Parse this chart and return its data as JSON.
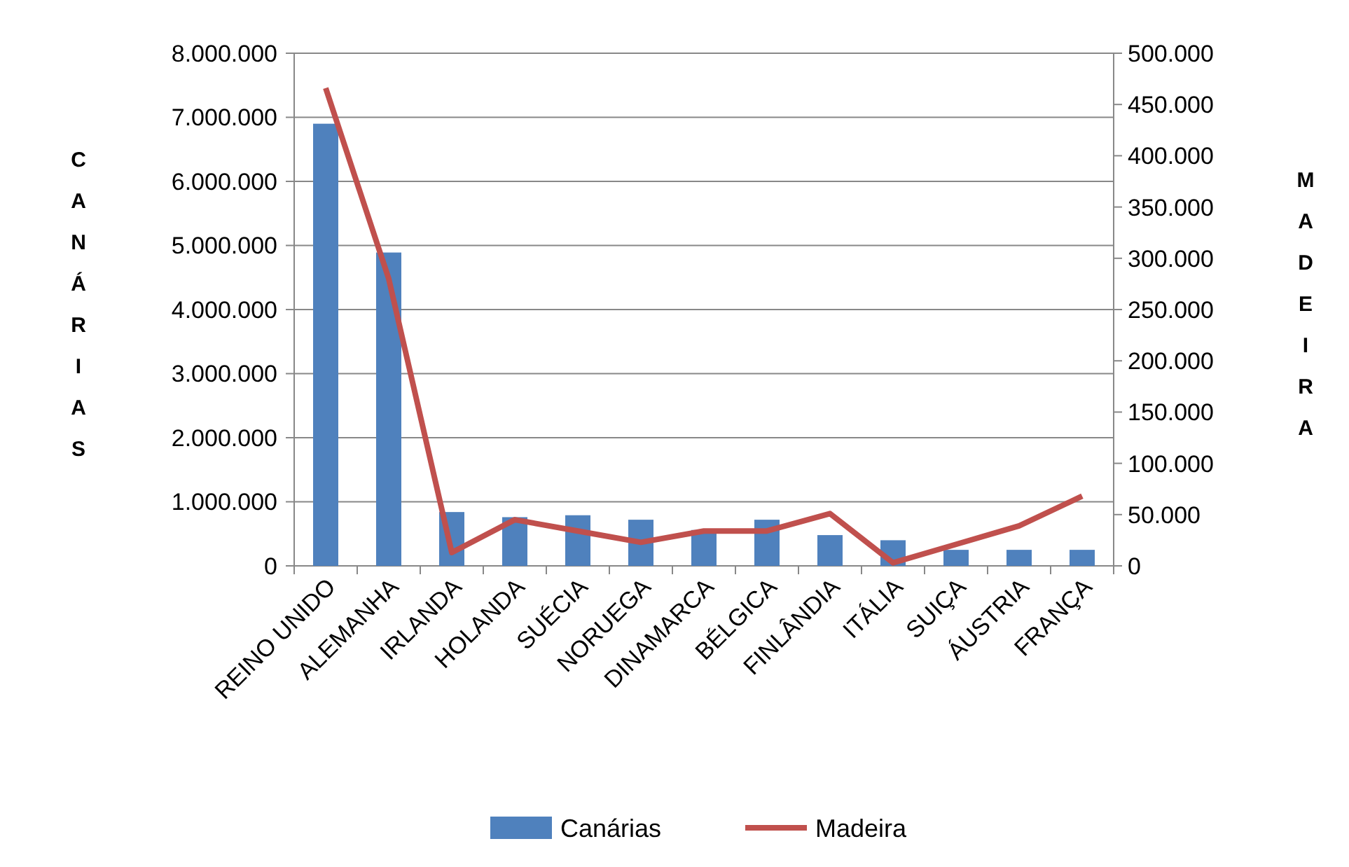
{
  "chart_data": {
    "type": "bar",
    "ylabel": "CANÁRIAS",
    "y2label": "MADEIRA",
    "categories": [
      "REINO UNIDO",
      "ALEMANHA",
      "IRLANDA",
      "HOLANDA",
      "SUÉCIA",
      "NORUEGA",
      "DINAMARCA",
      "BÉLGICA",
      "FINLÂNDIA",
      "ITÁLIA",
      "SUIÇA",
      "ÁUSTRIA",
      "FRANÇA"
    ],
    "series": [
      {
        "name": "Canárias",
        "color": "#4f81bd",
        "values": [
          6900000,
          4890000,
          840000,
          760000,
          790000,
          720000,
          560000,
          720000,
          480000,
          400000,
          250000,
          250000,
          250000
        ]
      },
      {
        "name": "Madeira",
        "type": "line",
        "axis": "y2",
        "color": "#c0504d",
        "values": [
          466000,
          280000,
          13000,
          45000,
          34000,
          23000,
          34000,
          34000,
          51000,
          3000,
          21000,
          39000,
          68000
        ]
      }
    ],
    "ylim": [
      0,
      8000000
    ],
    "yticks": [
      {
        "value": 0,
        "label": "0"
      },
      {
        "value": 1000000,
        "label": "1.000.000"
      },
      {
        "value": 2000000,
        "label": "2.000.000"
      },
      {
        "value": 3000000,
        "label": "3.000.000"
      },
      {
        "value": 4000000,
        "label": "4.000.000"
      },
      {
        "value": 5000000,
        "label": "5.000.000"
      },
      {
        "value": 6000000,
        "label": "6.000.000"
      },
      {
        "value": 7000000,
        "label": "7.000.000"
      },
      {
        "value": 8000000,
        "label": "8.000.000"
      }
    ],
    "y2lim": [
      0,
      500000
    ],
    "y2ticks": [
      {
        "value": 0,
        "label": "0"
      },
      {
        "value": 50000,
        "label": "50.000"
      },
      {
        "value": 100000,
        "label": "100.000"
      },
      {
        "value": 150000,
        "label": "150.000"
      },
      {
        "value": 200000,
        "label": "200.000"
      },
      {
        "value": 250000,
        "label": "250.000"
      },
      {
        "value": 300000,
        "label": "300.000"
      },
      {
        "value": 350000,
        "label": "350.000"
      },
      {
        "value": 400000,
        "label": "400.000"
      },
      {
        "value": 450000,
        "label": "450.000"
      },
      {
        "value": 500000,
        "label": "500.000"
      }
    ],
    "grid": "y",
    "legend": "bottom",
    "marker": "none",
    "line_style": "solid"
  }
}
